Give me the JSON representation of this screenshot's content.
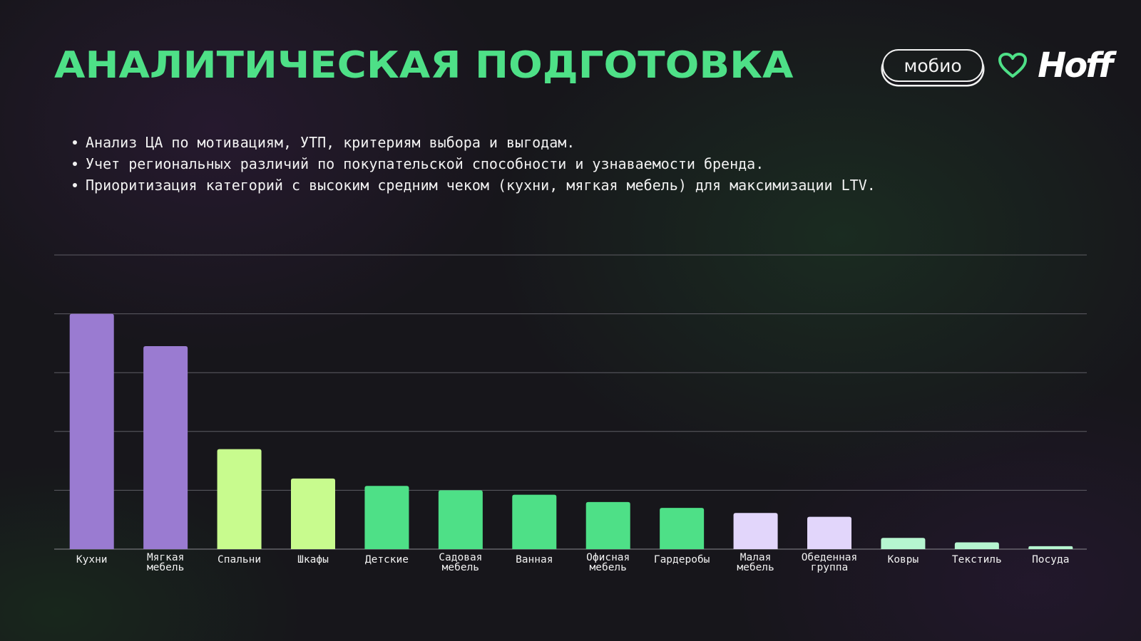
{
  "header": {
    "title": "АНАЛИТИЧЕСКАЯ ПОДГОТОВКА",
    "logo_mobio": "мобио",
    "logo_hoff": "Hoff",
    "heart_icon": "heart-icon",
    "accent_color": "#4ee087"
  },
  "bullets": [
    "Анализ ЦА по мотивациям, УТП, критериям выбора и выгодам.",
    "Учет региональных различий по покупательской способности и узнаваемости бренда.",
    "Приоритизация категорий с высоким средним чеком (кухни, мягкая мебель) для максимизации LTV."
  ],
  "chart_data": {
    "type": "bar",
    "title": "",
    "xlabel": "",
    "ylabel": "",
    "ylim": [
      0,
      100
    ],
    "grid": true,
    "y_tick_labels_shown": false,
    "categories": [
      [
        "Кухни"
      ],
      [
        "Мягкая",
        "мебель"
      ],
      [
        "Спальни"
      ],
      [
        "Шкафы"
      ],
      [
        "Детские"
      ],
      [
        "Садовая",
        "мебель"
      ],
      [
        "Ванная"
      ],
      [
        "Офисная",
        "мебель"
      ],
      [
        "Гардеробы"
      ],
      [
        "Малая",
        "мебель"
      ],
      [
        "Обеденная",
        "группа"
      ],
      [
        "Ковры"
      ],
      [
        "Текстиль"
      ],
      [
        "Посуда"
      ]
    ],
    "values": [
      80,
      69,
      34,
      24,
      21.5,
      20,
      18.5,
      16,
      14,
      12.3,
      11,
      3.8,
      2.3,
      1
    ],
    "colors": [
      "#9a7bd1",
      "#9a7bd1",
      "#c8fb8e",
      "#c8fb8e",
      "#4ee087",
      "#4ee087",
      "#4ee087",
      "#4ee087",
      "#4ee087",
      "#e2d6fb",
      "#e2d6fb",
      "#b6f5d0",
      "#b6f5d0",
      "#b6f5d0"
    ]
  }
}
